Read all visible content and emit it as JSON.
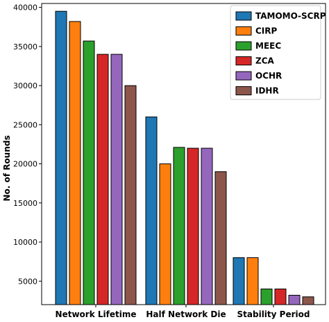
{
  "chart_data": {
    "type": "bar",
    "categories": [
      "Network Lifetime",
      "Half Network Die",
      "Stability Period"
    ],
    "series": [
      {
        "name": "TAMOMO-SCRP",
        "color": "#1f77b4",
        "values": [
          39500,
          26000,
          8000
        ]
      },
      {
        "name": "CIRP",
        "color": "#ff7f0e",
        "values": [
          38200,
          20000,
          8000
        ]
      },
      {
        "name": "MEEC",
        "color": "#2ca02c",
        "values": [
          35700,
          22100,
          4000
        ]
      },
      {
        "name": "ZCA",
        "color": "#d62728",
        "values": [
          34000,
          22000,
          4000
        ]
      },
      {
        "name": "OCHR",
        "color": "#9467bd",
        "values": [
          34000,
          22000,
          3200
        ]
      },
      {
        "name": "IDHR",
        "color": "#8c564b",
        "values": [
          30000,
          19000,
          3000
        ]
      }
    ],
    "ylabel": "No. of Rounds",
    "ylim": [
      2000,
      40500
    ],
    "yticks": [
      5000,
      10000,
      15000,
      20000,
      25000,
      30000,
      35000,
      40000
    ],
    "grid": false,
    "legend_position": "top-right"
  }
}
